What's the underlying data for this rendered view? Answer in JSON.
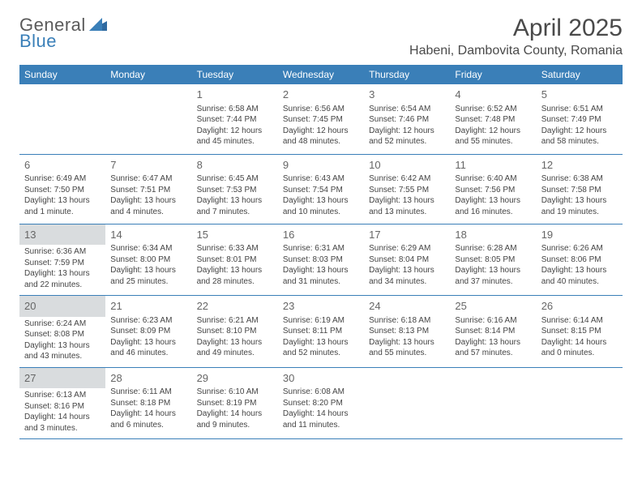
{
  "logo": {
    "text1": "General",
    "text2": "Blue"
  },
  "title": "April 2025",
  "location": "Habeni, Dambovita County, Romania",
  "colors": {
    "header_bg": "#3a7fb8",
    "header_text": "#ffffff",
    "border": "#3a7fb8",
    "body_text": "#444444",
    "daynum_text": "#666666",
    "highlight_bg": "#d9dcde"
  },
  "dayHeaders": [
    "Sunday",
    "Monday",
    "Tuesday",
    "Wednesday",
    "Thursday",
    "Friday",
    "Saturday"
  ],
  "weeks": [
    [
      {
        "blank": true
      },
      {
        "blank": true
      },
      {
        "num": "1",
        "sunrise": "Sunrise: 6:58 AM",
        "sunset": "Sunset: 7:44 PM",
        "daylight": "Daylight: 12 hours and 45 minutes."
      },
      {
        "num": "2",
        "sunrise": "Sunrise: 6:56 AM",
        "sunset": "Sunset: 7:45 PM",
        "daylight": "Daylight: 12 hours and 48 minutes."
      },
      {
        "num": "3",
        "sunrise": "Sunrise: 6:54 AM",
        "sunset": "Sunset: 7:46 PM",
        "daylight": "Daylight: 12 hours and 52 minutes."
      },
      {
        "num": "4",
        "sunrise": "Sunrise: 6:52 AM",
        "sunset": "Sunset: 7:48 PM",
        "daylight": "Daylight: 12 hours and 55 minutes."
      },
      {
        "num": "5",
        "sunrise": "Sunrise: 6:51 AM",
        "sunset": "Sunset: 7:49 PM",
        "daylight": "Daylight: 12 hours and 58 minutes."
      }
    ],
    [
      {
        "num": "6",
        "sunrise": "Sunrise: 6:49 AM",
        "sunset": "Sunset: 7:50 PM",
        "daylight": "Daylight: 13 hours and 1 minute."
      },
      {
        "num": "7",
        "sunrise": "Sunrise: 6:47 AM",
        "sunset": "Sunset: 7:51 PM",
        "daylight": "Daylight: 13 hours and 4 minutes."
      },
      {
        "num": "8",
        "sunrise": "Sunrise: 6:45 AM",
        "sunset": "Sunset: 7:53 PM",
        "daylight": "Daylight: 13 hours and 7 minutes."
      },
      {
        "num": "9",
        "sunrise": "Sunrise: 6:43 AM",
        "sunset": "Sunset: 7:54 PM",
        "daylight": "Daylight: 13 hours and 10 minutes."
      },
      {
        "num": "10",
        "sunrise": "Sunrise: 6:42 AM",
        "sunset": "Sunset: 7:55 PM",
        "daylight": "Daylight: 13 hours and 13 minutes."
      },
      {
        "num": "11",
        "sunrise": "Sunrise: 6:40 AM",
        "sunset": "Sunset: 7:56 PM",
        "daylight": "Daylight: 13 hours and 16 minutes."
      },
      {
        "num": "12",
        "sunrise": "Sunrise: 6:38 AM",
        "sunset": "Sunset: 7:58 PM",
        "daylight": "Daylight: 13 hours and 19 minutes."
      }
    ],
    [
      {
        "num": "13",
        "highlight": true,
        "sunrise": "Sunrise: 6:36 AM",
        "sunset": "Sunset: 7:59 PM",
        "daylight": "Daylight: 13 hours and 22 minutes."
      },
      {
        "num": "14",
        "sunrise": "Sunrise: 6:34 AM",
        "sunset": "Sunset: 8:00 PM",
        "daylight": "Daylight: 13 hours and 25 minutes."
      },
      {
        "num": "15",
        "sunrise": "Sunrise: 6:33 AM",
        "sunset": "Sunset: 8:01 PM",
        "daylight": "Daylight: 13 hours and 28 minutes."
      },
      {
        "num": "16",
        "sunrise": "Sunrise: 6:31 AM",
        "sunset": "Sunset: 8:03 PM",
        "daylight": "Daylight: 13 hours and 31 minutes."
      },
      {
        "num": "17",
        "sunrise": "Sunrise: 6:29 AM",
        "sunset": "Sunset: 8:04 PM",
        "daylight": "Daylight: 13 hours and 34 minutes."
      },
      {
        "num": "18",
        "sunrise": "Sunrise: 6:28 AM",
        "sunset": "Sunset: 8:05 PM",
        "daylight": "Daylight: 13 hours and 37 minutes."
      },
      {
        "num": "19",
        "sunrise": "Sunrise: 6:26 AM",
        "sunset": "Sunset: 8:06 PM",
        "daylight": "Daylight: 13 hours and 40 minutes."
      }
    ],
    [
      {
        "num": "20",
        "highlight": true,
        "sunrise": "Sunrise: 6:24 AM",
        "sunset": "Sunset: 8:08 PM",
        "daylight": "Daylight: 13 hours and 43 minutes."
      },
      {
        "num": "21",
        "sunrise": "Sunrise: 6:23 AM",
        "sunset": "Sunset: 8:09 PM",
        "daylight": "Daylight: 13 hours and 46 minutes."
      },
      {
        "num": "22",
        "sunrise": "Sunrise: 6:21 AM",
        "sunset": "Sunset: 8:10 PM",
        "daylight": "Daylight: 13 hours and 49 minutes."
      },
      {
        "num": "23",
        "sunrise": "Sunrise: 6:19 AM",
        "sunset": "Sunset: 8:11 PM",
        "daylight": "Daylight: 13 hours and 52 minutes."
      },
      {
        "num": "24",
        "sunrise": "Sunrise: 6:18 AM",
        "sunset": "Sunset: 8:13 PM",
        "daylight": "Daylight: 13 hours and 55 minutes."
      },
      {
        "num": "25",
        "sunrise": "Sunrise: 6:16 AM",
        "sunset": "Sunset: 8:14 PM",
        "daylight": "Daylight: 13 hours and 57 minutes."
      },
      {
        "num": "26",
        "sunrise": "Sunrise: 6:14 AM",
        "sunset": "Sunset: 8:15 PM",
        "daylight": "Daylight: 14 hours and 0 minutes."
      }
    ],
    [
      {
        "num": "27",
        "highlight": true,
        "sunrise": "Sunrise: 6:13 AM",
        "sunset": "Sunset: 8:16 PM",
        "daylight": "Daylight: 14 hours and 3 minutes."
      },
      {
        "num": "28",
        "sunrise": "Sunrise: 6:11 AM",
        "sunset": "Sunset: 8:18 PM",
        "daylight": "Daylight: 14 hours and 6 minutes."
      },
      {
        "num": "29",
        "sunrise": "Sunrise: 6:10 AM",
        "sunset": "Sunset: 8:19 PM",
        "daylight": "Daylight: 14 hours and 9 minutes."
      },
      {
        "num": "30",
        "sunrise": "Sunrise: 6:08 AM",
        "sunset": "Sunset: 8:20 PM",
        "daylight": "Daylight: 14 hours and 11 minutes."
      },
      {
        "blank": true
      },
      {
        "blank": true
      },
      {
        "blank": true
      }
    ]
  ]
}
